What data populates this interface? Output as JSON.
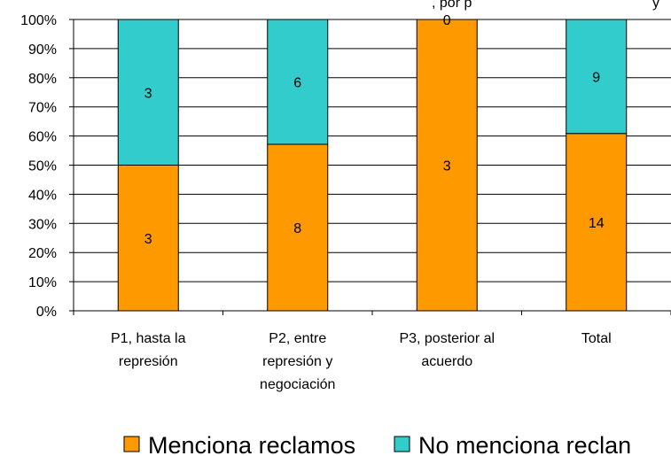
{
  "chart_data": {
    "type": "bar",
    "stacked": "percent",
    "title_fragment": ", por p",
    "title_fragment_tail": "y",
    "categories": [
      [
        "P1, hasta la",
        "represión"
      ],
      [
        "P2, entre",
        "represión y",
        "negociación"
      ],
      [
        "P3, posterior al",
        "acuerdo"
      ],
      [
        "Total"
      ]
    ],
    "series": [
      {
        "name": "Menciona reclamos",
        "values": [
          3,
          8,
          3,
          14
        ],
        "color": "#ff9900"
      },
      {
        "name": "No menciona reclan",
        "values": [
          3,
          6,
          0,
          9
        ],
        "color": "#33cccc"
      }
    ],
    "ylim": [
      0,
      100
    ],
    "yticks": [
      "0%",
      "10%",
      "20%",
      "30%",
      "40%",
      "50%",
      "60%",
      "70%",
      "80%",
      "90%",
      "100%"
    ],
    "grid": true,
    "legend": "bottom"
  }
}
